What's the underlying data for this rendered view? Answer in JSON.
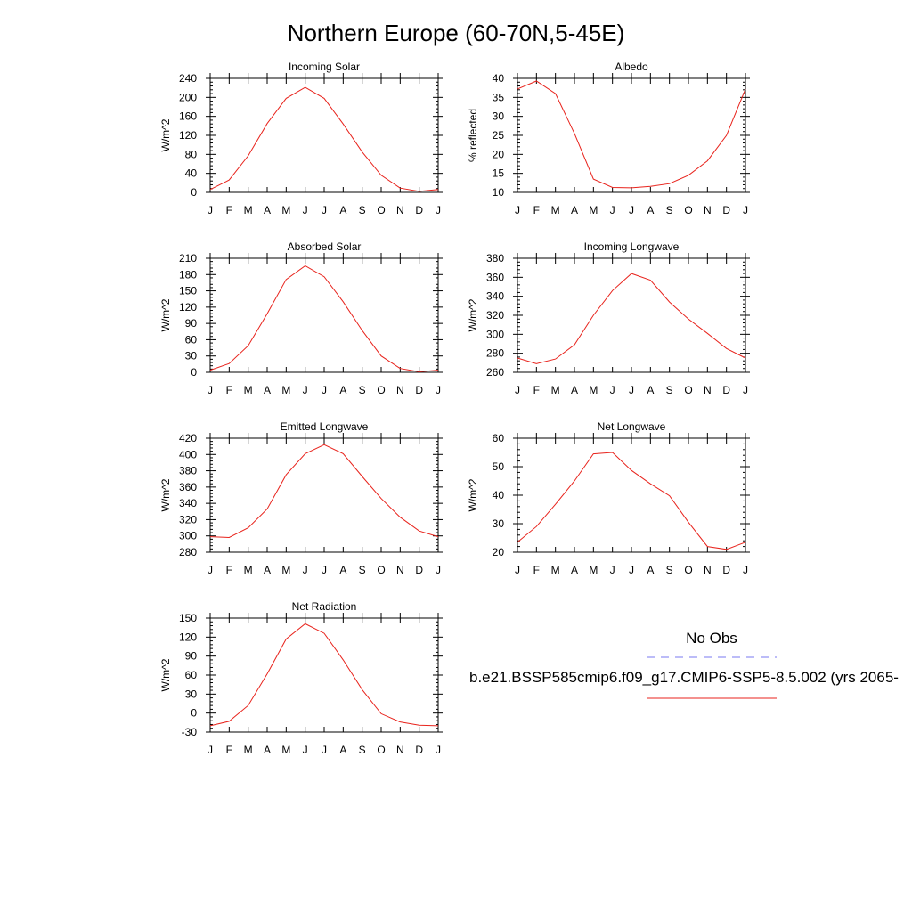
{
  "figure_title": "Northern Europe (60-70N,5-45E)",
  "legend": {
    "obs_label": "No Obs",
    "obs_color": "#7a7af0",
    "model_label": "b.e21.BSSP585cmip6.f09_g17.CMIP6-SSP5-8.5.002 (yrs 2065-",
    "model_color": "#e8231c"
  },
  "chart_data": [
    {
      "type": "line",
      "title": "Incoming Solar",
      "ylabel": "W/m^2",
      "x": [
        "J",
        "F",
        "M",
        "A",
        "M",
        "J",
        "J",
        "A",
        "S",
        "O",
        "N",
        "D",
        "J"
      ],
      "ylim": [
        0,
        240
      ],
      "yticks": [
        0,
        40,
        80,
        120,
        160,
        200,
        240
      ],
      "series": [
        {
          "color": "#e8231c",
          "values": [
            6,
            26,
            77,
            145,
            198,
            221,
            198,
            144,
            85,
            36,
            9,
            2,
            6
          ]
        }
      ]
    },
    {
      "type": "line",
      "title": "Albedo",
      "ylabel": "% reflected",
      "x": [
        "J",
        "F",
        "M",
        "A",
        "M",
        "J",
        "J",
        "A",
        "S",
        "O",
        "N",
        "D",
        "J"
      ],
      "ylim": [
        10,
        40
      ],
      "yticks": [
        10,
        15,
        20,
        25,
        30,
        35,
        40
      ],
      "series": [
        {
          "color": "#e8231c",
          "values": [
            37.2,
            39.3,
            36.0,
            25.5,
            13.5,
            11.3,
            11.2,
            11.6,
            12.3,
            14.5,
            18.3,
            25.0,
            37.2
          ]
        }
      ]
    },
    {
      "type": "line",
      "title": "Absorbed Solar",
      "ylabel": "W/m^2",
      "x": [
        "J",
        "F",
        "M",
        "A",
        "M",
        "J",
        "J",
        "A",
        "S",
        "O",
        "N",
        "D",
        "J"
      ],
      "ylim": [
        0,
        210
      ],
      "yticks": [
        0,
        30,
        60,
        90,
        120,
        150,
        180,
        210
      ],
      "series": [
        {
          "color": "#e8231c",
          "values": [
            4,
            16,
            49,
            108,
            171,
            196,
            176,
            130,
            77,
            30,
            7,
            1,
            4
          ]
        }
      ]
    },
    {
      "type": "line",
      "title": "Incoming Longwave",
      "ylabel": "W/m^2",
      "x": [
        "J",
        "F",
        "M",
        "A",
        "M",
        "J",
        "J",
        "A",
        "S",
        "O",
        "N",
        "D",
        "J"
      ],
      "ylim": [
        260,
        380
      ],
      "yticks": [
        260,
        280,
        300,
        320,
        340,
        360,
        380
      ],
      "series": [
        {
          "color": "#e8231c",
          "values": [
            275,
            269,
            274,
            289,
            320,
            346,
            364,
            357,
            334,
            316,
            301,
            285,
            275
          ]
        }
      ]
    },
    {
      "type": "line",
      "title": "Emitted Longwave",
      "ylabel": "W/m^2",
      "x": [
        "J",
        "F",
        "M",
        "A",
        "M",
        "J",
        "J",
        "A",
        "S",
        "O",
        "N",
        "D",
        "J"
      ],
      "ylim": [
        280,
        420
      ],
      "yticks": [
        280,
        300,
        320,
        340,
        360,
        380,
        400,
        420
      ],
      "series": [
        {
          "color": "#e8231c",
          "values": [
            299,
            298,
            310,
            333,
            375,
            401,
            412,
            401,
            373,
            346,
            323,
            306,
            299
          ]
        }
      ]
    },
    {
      "type": "line",
      "title": "Net Longwave",
      "ylabel": "W/m^2",
      "x": [
        "J",
        "F",
        "M",
        "A",
        "M",
        "J",
        "J",
        "A",
        "S",
        "O",
        "N",
        "D",
        "J"
      ],
      "ylim": [
        20,
        60
      ],
      "yticks": [
        20,
        30,
        40,
        50,
        60
      ],
      "series": [
        {
          "color": "#e8231c",
          "values": [
            23.5,
            29.0,
            36.8,
            45.0,
            54.5,
            55.0,
            48.7,
            44.0,
            39.8,
            30.5,
            22.0,
            21.0,
            23.5
          ]
        }
      ]
    },
    {
      "type": "line",
      "title": "Net Radiation",
      "ylabel": "W/m^2",
      "x": [
        "J",
        "F",
        "M",
        "A",
        "M",
        "J",
        "J",
        "A",
        "S",
        "O",
        "N",
        "D",
        "J"
      ],
      "ylim": [
        -30,
        150
      ],
      "yticks": [
        -30,
        0,
        30,
        60,
        90,
        120,
        150
      ],
      "series": [
        {
          "color": "#e8231c",
          "values": [
            -20,
            -13,
            12,
            62,
            117,
            141,
            126,
            84,
            37,
            -1,
            -14,
            -19,
            -20
          ]
        }
      ]
    }
  ]
}
